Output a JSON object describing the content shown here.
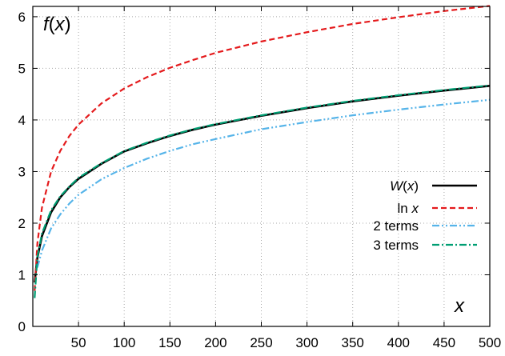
{
  "chart_data": {
    "type": "line",
    "ylabel": "f(x)",
    "xlabel": "x",
    "xlim": [
      0,
      500
    ],
    "ylim": [
      0,
      6.2
    ],
    "xticks": [
      50,
      100,
      150,
      200,
      250,
      300,
      350,
      400,
      450,
      500
    ],
    "yticks": [
      0,
      1,
      2,
      3,
      4,
      5,
      6
    ],
    "grid": true,
    "legend_position": "bottom-right",
    "series": [
      {
        "name": "W(x)",
        "color": "#000000",
        "dash": "solid",
        "x": [
          2,
          5,
          10,
          20,
          30,
          40,
          50,
          75,
          100,
          125,
          150,
          175,
          200,
          250,
          300,
          350,
          400,
          450,
          500
        ],
        "y": [
          0.85,
          1.33,
          1.75,
          2.21,
          2.5,
          2.7,
          2.86,
          3.15,
          3.39,
          3.55,
          3.69,
          3.81,
          3.91,
          4.08,
          4.23,
          4.36,
          4.47,
          4.57,
          4.66
        ]
      },
      {
        "name": "ln x",
        "color": "#e41a1c",
        "dash": "dashed",
        "x": [
          2,
          5,
          10,
          20,
          30,
          40,
          50,
          75,
          100,
          125,
          150,
          175,
          200,
          250,
          300,
          350,
          400,
          450,
          500
        ],
        "y": [
          0.69,
          1.61,
          2.3,
          3.0,
          3.4,
          3.69,
          3.91,
          4.32,
          4.61,
          4.83,
          5.01,
          5.16,
          5.3,
          5.52,
          5.7,
          5.86,
          5.99,
          6.11,
          6.21
        ]
      },
      {
        "name": "2 terms",
        "color": "#56b4e9",
        "dash": "dashdotdot",
        "x": [
          5,
          10,
          20,
          30,
          40,
          50,
          75,
          100,
          125,
          150,
          175,
          200,
          250,
          300,
          350,
          400,
          450,
          500
        ],
        "y": [
          1.14,
          1.47,
          1.9,
          2.17,
          2.38,
          2.55,
          2.85,
          3.07,
          3.25,
          3.4,
          3.53,
          3.63,
          3.82,
          3.96,
          4.09,
          4.2,
          4.3,
          4.39
        ]
      },
      {
        "name": "3 terms",
        "color": "#009e73",
        "dash": "dashdot",
        "x": [
          2,
          5,
          10,
          20,
          30,
          40,
          50,
          75,
          100,
          125,
          150,
          175,
          200,
          250,
          300,
          350,
          400,
          450,
          500
        ],
        "y": [
          0.55,
          1.35,
          1.8,
          2.25,
          2.52,
          2.71,
          2.88,
          3.16,
          3.4,
          3.56,
          3.7,
          3.82,
          3.92,
          4.09,
          4.24,
          4.37,
          4.48,
          4.58,
          4.67
        ]
      }
    ]
  }
}
